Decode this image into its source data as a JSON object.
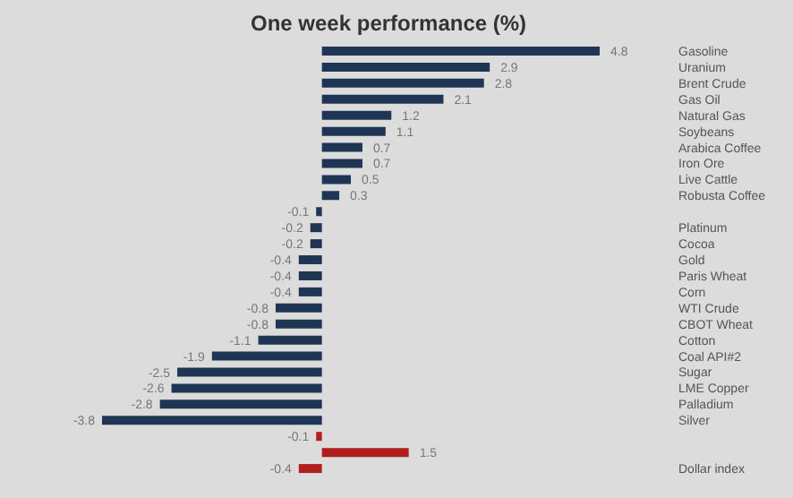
{
  "chart_data": {
    "type": "bar",
    "orientation": "horizontal",
    "title": "One week performance (%)",
    "categories": [
      "Gasoline",
      "Uranium",
      "Brent Crude",
      "Gas Oil",
      "Natural Gas",
      "Soybeans",
      "Arabica Coffee",
      "Iron Ore",
      "Live Cattle",
      "Robusta Coffee",
      null,
      "Platinum",
      "Cocoa",
      "Gold",
      "Paris Wheat",
      "Corn",
      "WTI Crude",
      "CBOT Wheat",
      "Cotton",
      "Coal API#2",
      "Sugar",
      "LME Copper",
      "Palladium",
      "Silver",
      null,
      null,
      "Dollar index"
    ],
    "values": [
      4.8,
      2.9,
      2.8,
      2.1,
      1.2,
      1.1,
      0.7,
      0.7,
      0.5,
      0.3,
      -0.1,
      -0.2,
      -0.2,
      -0.4,
      -0.4,
      -0.4,
      -0.8,
      -0.8,
      -1.1,
      -1.9,
      -2.5,
      -2.6,
      -2.8,
      -3.8,
      -0.1,
      1.5,
      -0.4
    ],
    "colors": [
      "#1f3554",
      "#1f3554",
      "#1f3554",
      "#1f3554",
      "#1f3554",
      "#1f3554",
      "#1f3554",
      "#1f3554",
      "#1f3554",
      "#1f3554",
      "#1f3554",
      "#1f3554",
      "#1f3554",
      "#1f3554",
      "#1f3554",
      "#1f3554",
      "#1f3554",
      "#1f3554",
      "#1f3554",
      "#1f3554",
      "#1f3554",
      "#1f3554",
      "#1f3554",
      "#1f3554",
      "#b01e1e",
      "#b01e1e",
      "#b01e1e"
    ],
    "data_labels": true,
    "grid": false,
    "legend": false
  }
}
